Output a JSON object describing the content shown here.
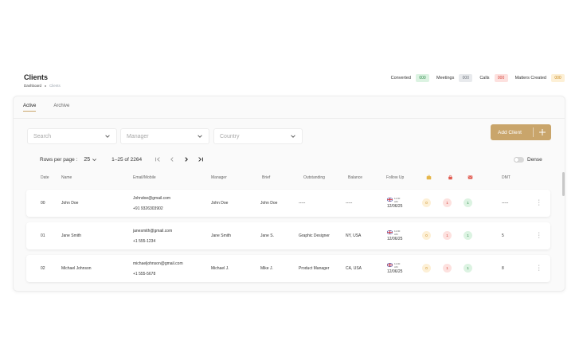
{
  "header": {
    "title": "Clients",
    "breadcrumb": [
      "Dashboard",
      "Clients"
    ]
  },
  "stats": [
    {
      "label": "Converted",
      "value": "000",
      "color": "green"
    },
    {
      "label": "Meetings",
      "value": "000",
      "color": "grey"
    },
    {
      "label": "Calls",
      "value": "000",
      "color": "red"
    },
    {
      "label": "Matters Created",
      "value": "000",
      "color": "yellow"
    }
  ],
  "tabs": [
    {
      "label": "Active",
      "active": true
    },
    {
      "label": "Archive",
      "active": false
    }
  ],
  "filters": {
    "search": "Search",
    "manager": "Manager",
    "country": "Country"
  },
  "add_button": "Add Client",
  "pagination": {
    "rows_label": "Rows per page :",
    "rows_value": "25",
    "range": "1–25 of 2264"
  },
  "dense_label": "Dense",
  "columns": [
    "Date",
    "Name",
    "Email/Mobile",
    "Manager",
    "Brief",
    "Outstanding",
    "Balance",
    "Follow Up",
    "DMT"
  ],
  "column_icons": [
    "briefcase-icon",
    "bag-icon",
    "mail-icon"
  ],
  "rows": [
    {
      "date": "00",
      "name": "John Doe",
      "email": "Johndoe@gmail.com",
      "mobile": "+91 9326303902",
      "manager": "John Doe",
      "brief": "John Doe",
      "outstanding": "-----",
      "balance": "-----",
      "follow_time": "11:00",
      "follow_ampm": "AM",
      "follow_date": "12/06/25",
      "c1": "0",
      "c2": "1",
      "c3": "1",
      "dmt": "-----"
    },
    {
      "date": "01",
      "name": "Jane Smith",
      "email": "janesmith@gmail.com",
      "mobile": "+1 555-1234",
      "manager": "Jane Smith",
      "brief": "Jane S.",
      "outstanding": "Graphic Designer",
      "balance": "NY, USA",
      "follow_time": "11:00",
      "follow_ampm": "AM",
      "follow_date": "12/06/25",
      "c1": "0",
      "c2": "1",
      "c3": "1",
      "dmt": "5"
    },
    {
      "date": "02",
      "name": "Michael Johnson",
      "email": "michaeljohnson@gmail.com",
      "mobile": "+1 555-5678",
      "manager": "Michael J.",
      "brief": "Mike J.",
      "outstanding": "Product Manager",
      "balance": "CA, USA",
      "follow_time": "11:00",
      "follow_ampm": "AM",
      "follow_date": "12/06/25",
      "c1": "0",
      "c2": "1",
      "c3": "1",
      "dmt": "8"
    }
  ],
  "colors": {
    "accent": "#c9a56b",
    "green": "#2f8a4b",
    "red": "#d4443b",
    "yellow": "#c98b1f"
  }
}
